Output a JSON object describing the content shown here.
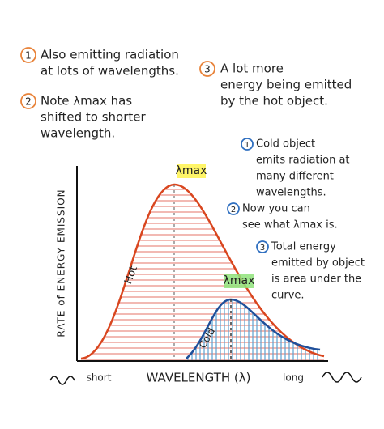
{
  "hot_notes": [
    {
      "number": "1",
      "lines": [
        "Also emitting radiation",
        "at lots of wavelengths."
      ]
    },
    {
      "number": "2",
      "lines": [
        "Note λmax has",
        "shifted to shorter",
        "wavelength."
      ]
    },
    {
      "number": "3",
      "lines": [
        "A lot more",
        "energy being emitted",
        "by the hot object."
      ]
    }
  ],
  "cold_notes": [
    {
      "number": "1",
      "lines": [
        "Cold object",
        "emits radiation at",
        "many different",
        "wavelengths."
      ]
    },
    {
      "number": "2",
      "lines": [
        "Now you can",
        "see what λmax is."
      ]
    },
    {
      "number": "3",
      "lines": [
        "Total energy",
        "emitted by object",
        "is area under the",
        "curve."
      ]
    }
  ],
  "graph": {
    "y_axis_label": "RATE of ENERGY EMISSION",
    "x_axis_label": "WAVELENGTH (λ)",
    "short_label": "short",
    "long_label": "long",
    "hot_peak_label": "λmax",
    "cold_peak_label": "λmax",
    "hot_curve_label": "Hot",
    "cold_curve_label": "Cold"
  }
}
